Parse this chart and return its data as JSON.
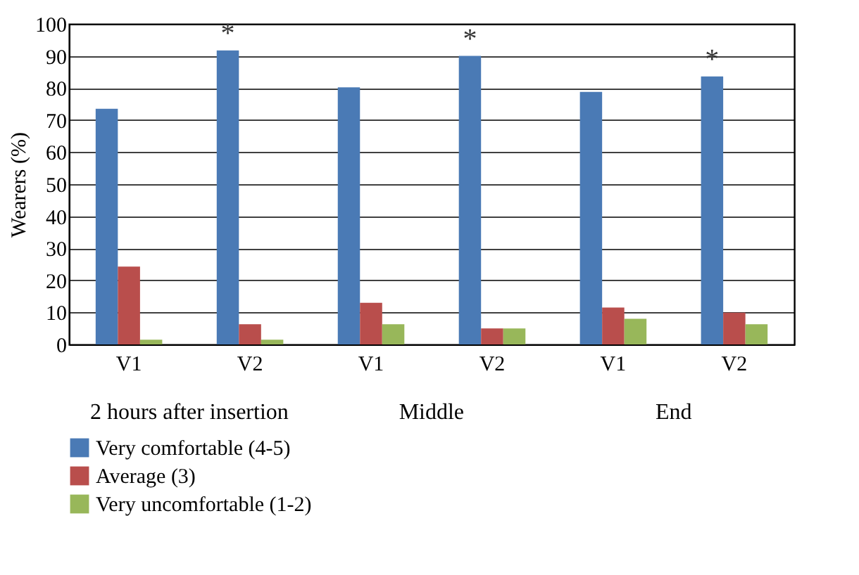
{
  "chart_data": {
    "type": "bar",
    "ylabel": "Wearers (%)",
    "categories": [
      "V1",
      "V2",
      "V1",
      "V2",
      "V1",
      "V2"
    ],
    "series": [
      {
        "name": "Very comfortable (4-5)",
        "color": "#4a7ab5",
        "values": [
          73.5,
          91.7,
          80.2,
          90.0,
          78.8,
          83.6
        ],
        "value_labels": [
          null,
          "*",
          null,
          "*",
          null,
          "*"
        ]
      },
      {
        "name": "Average (3)",
        "color": "#b94e4c",
        "values": [
          24.3,
          6.3,
          13.0,
          5.0,
          11.5,
          9.9
        ]
      },
      {
        "name": "Very uncomfortable (1-2)",
        "color": "#98b75a",
        "values": [
          1.5,
          1.5,
          6.3,
          5.0,
          8.0,
          6.3
        ]
      }
    ],
    "annotations": [
      "2 hours after insertion",
      "Middle",
      "End"
    ],
    "ylim": [
      0,
      100
    ],
    "yticks": [
      0,
      10,
      20,
      30,
      40,
      50,
      60,
      70,
      80,
      90,
      100
    ],
    "grid": "y",
    "legend": "bottom"
  }
}
